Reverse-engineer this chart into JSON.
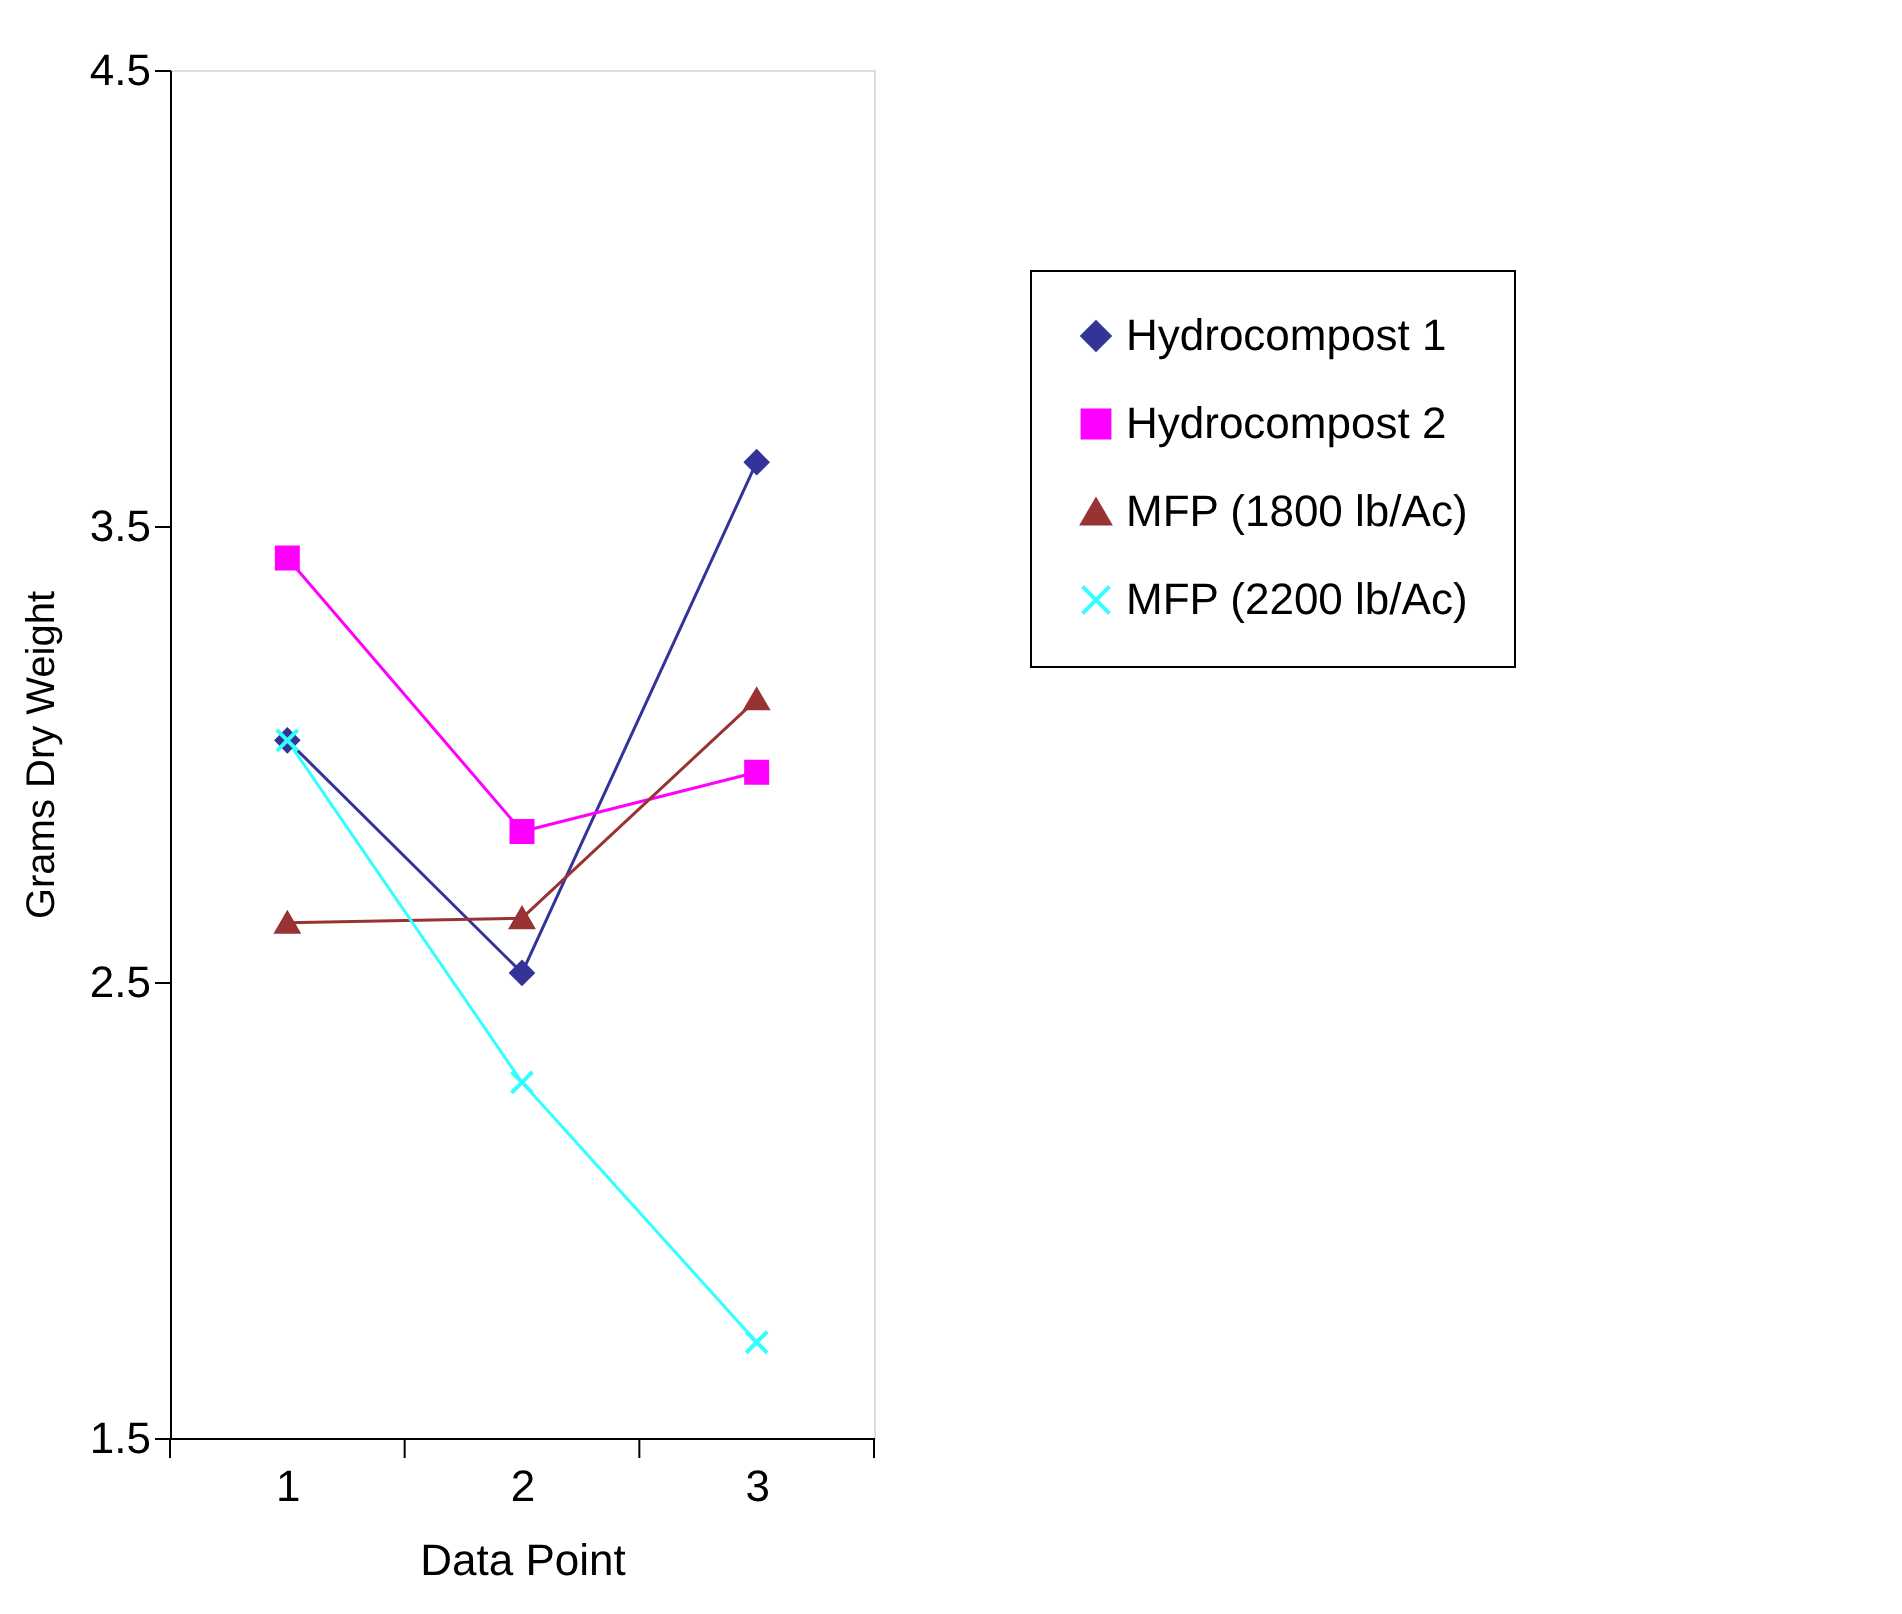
{
  "chart_data": {
    "type": "line",
    "xlabel": "Data Point",
    "ylabel": "Grams Dry Weight",
    "categories": [
      "1",
      "2",
      "3"
    ],
    "ylim": [
      1.5,
      4.5
    ],
    "yticks": [
      1.5,
      2.5,
      3.5,
      4.5
    ],
    "grid": false,
    "legend": "right",
    "series": [
      {
        "name": "Hydrocompost 1",
        "color": "#333399",
        "marker": "diamond",
        "values": [
          3.03,
          2.52,
          3.64
        ]
      },
      {
        "name": "Hydrocompost 2",
        "color": "#ff00ff",
        "marker": "square",
        "values": [
          3.43,
          2.83,
          2.96
        ]
      },
      {
        "name": "MFP (1800 lb/Ac)",
        "color": "#993333",
        "marker": "triangle",
        "values": [
          2.63,
          2.64,
          3.12
        ]
      },
      {
        "name": "MFP (2200 lb/Ac)",
        "color": "#33ffff",
        "marker": "cross",
        "values": [
          3.03,
          2.28,
          1.71
        ]
      }
    ]
  }
}
